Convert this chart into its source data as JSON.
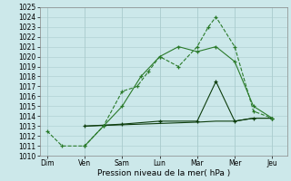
{
  "xlabel": "Pression niveau de la mer( hPa )",
  "background_color": "#cce8ea",
  "grid_color": "#aaccce",
  "ylim": [
    1010,
    1025
  ],
  "x_labels": [
    "Dim",
    "Ven",
    "Sam",
    "Lun",
    "Mar",
    "Mer",
    "Jeu"
  ],
  "x_positions": [
    0,
    1,
    2,
    3,
    4,
    5,
    6
  ],
  "line1_x": [
    0,
    0.4,
    1.0,
    1.5,
    2.0,
    2.4,
    2.7,
    3.0,
    3.5,
    4.0,
    4.3,
    4.5,
    5.0,
    5.5,
    6.0
  ],
  "line1_y": [
    1012.5,
    1011.0,
    1011.0,
    1013.0,
    1016.5,
    1017.0,
    1018.5,
    1020.0,
    1019.0,
    1021.0,
    1023.0,
    1024.0,
    1021.0,
    1014.5,
    1013.8
  ],
  "line2_x": [
    1.0,
    1.5,
    2.0,
    2.5,
    3.0,
    3.5,
    4.0,
    4.5,
    5.0,
    5.5,
    6.0
  ],
  "line2_y": [
    1011.0,
    1013.0,
    1015.0,
    1018.0,
    1020.0,
    1021.0,
    1020.5,
    1021.0,
    1019.5,
    1015.0,
    1013.8
  ],
  "line3_x": [
    1.0,
    2.0,
    3.0,
    4.0,
    4.5,
    5.0,
    5.5,
    6.0
  ],
  "line3_y": [
    1013.0,
    1013.2,
    1013.5,
    1013.5,
    1017.5,
    1013.5,
    1013.8,
    1013.8
  ],
  "line4_x": [
    1.0,
    2.5,
    4.0,
    4.5,
    5.0,
    5.5,
    6.0
  ],
  "line4_y": [
    1013.0,
    1013.2,
    1013.4,
    1013.5,
    1013.5,
    1013.8,
    1013.8
  ],
  "light_green": "#2a7a2a",
  "dark_green": "#0d3d0d",
  "xlabel_fontsize": 6.5,
  "tick_fontsize": 5.5
}
